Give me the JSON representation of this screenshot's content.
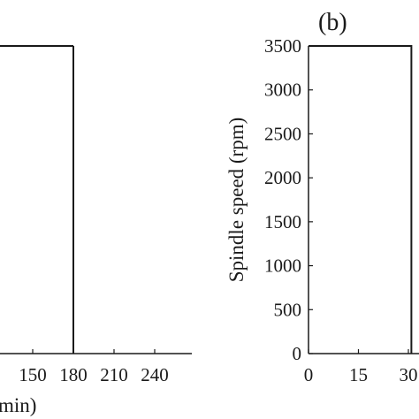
{
  "chart_data": [
    {
      "type": "line",
      "panel": "",
      "x_ticks": [
        "150",
        "180",
        "210",
        "240"
      ],
      "x_tick_values": [
        150,
        180,
        210,
        240
      ],
      "xlabel_visible_fragment": "min)",
      "y_ticks": [],
      "series": [
        {
          "x": [
            180,
            180
          ],
          "y": [
            3500,
            0
          ]
        }
      ],
      "xlim_visible": [
        123,
        252
      ],
      "ylim": [
        0,
        3500
      ],
      "grid": false
    },
    {
      "type": "line",
      "panel": "(b)",
      "x_ticks": [
        "0",
        "15",
        "30"
      ],
      "x_tick_values": [
        0,
        15,
        30
      ],
      "y_ticks": [
        "0",
        "500",
        "1000",
        "1500",
        "2000",
        "2500",
        "3000",
        "3500"
      ],
      "y_tick_values": [
        0,
        500,
        1000,
        1500,
        2000,
        2500,
        3000,
        3500
      ],
      "ylabel": "Spindle speed (rpm)",
      "series": [
        {
          "x": [
            0,
            30.9,
            30.9
          ],
          "y": [
            3500,
            3500,
            0
          ]
        }
      ],
      "xlim_visible": [
        0,
        31
      ],
      "ylim": [
        0,
        3500
      ],
      "grid": false
    }
  ],
  "colors": {
    "axis": "#1a1a1a",
    "line": "#1a1a1a",
    "background": "#ffffff"
  }
}
